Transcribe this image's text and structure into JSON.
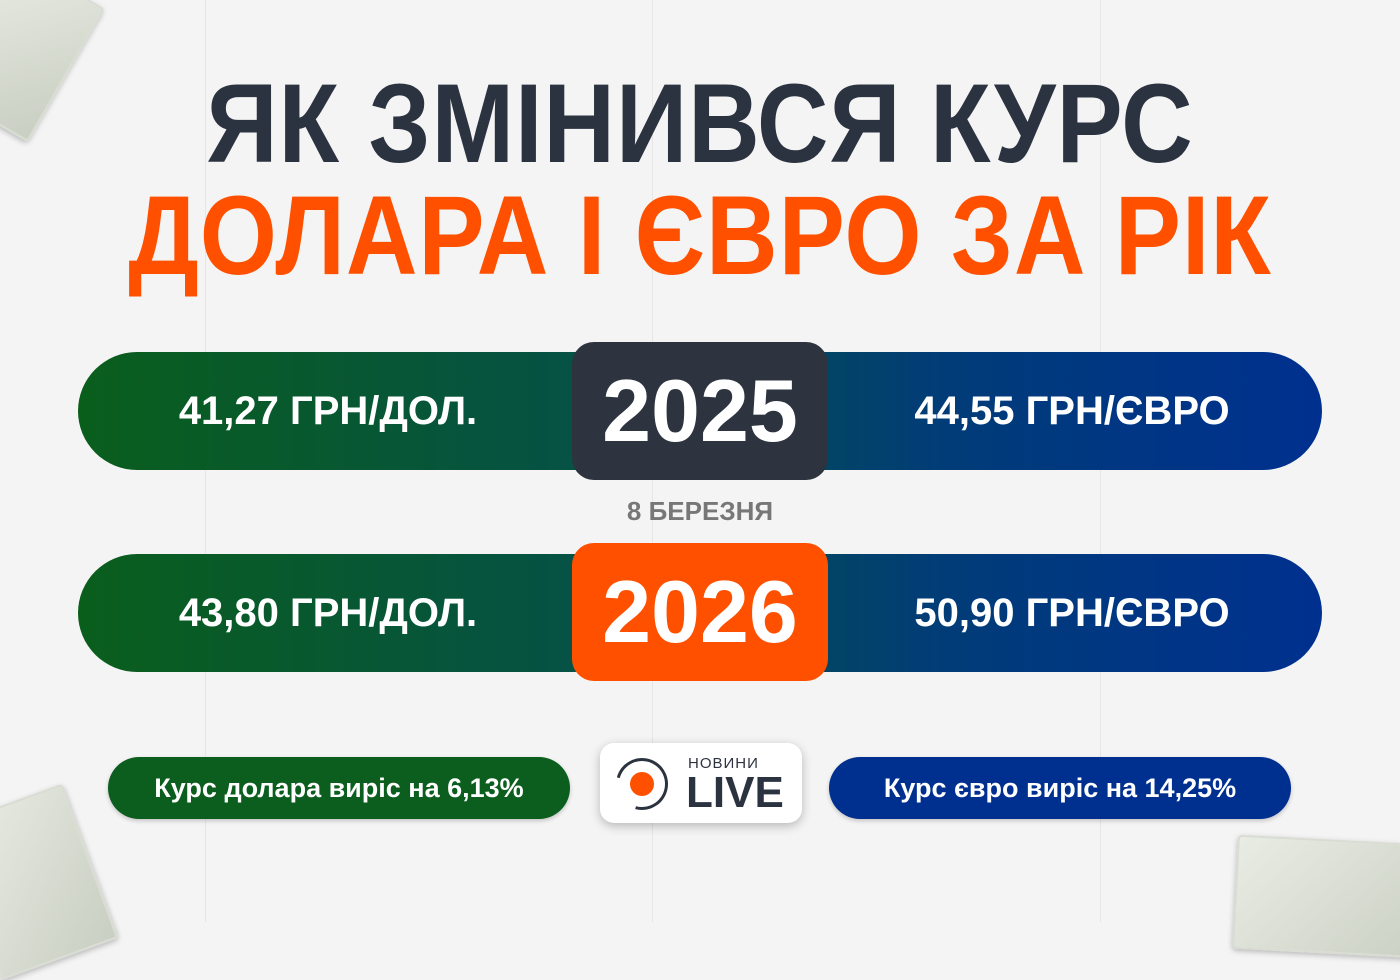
{
  "title": {
    "line1": "ЯК ЗМІНИВСЯ КУРС",
    "line2": "ДОЛАРА І ЄВРО ЗА РІК"
  },
  "rows": [
    {
      "year": "2025",
      "usd": "41,27 ГРН/ДОЛ.",
      "eur": "44,55 ГРН/ЄВРО"
    },
    {
      "year": "2026",
      "usd": "43,80 ГРН/ДОЛ.",
      "eur": "50,90 ГРН/ЄВРО"
    }
  ],
  "date": "8 БЕРЕЗНЯ",
  "summary": {
    "usd": "Курс долара виріс на 6,13%",
    "eur": "Курс євро виріс на 14,25%"
  },
  "logo": {
    "top": "НОВИНИ",
    "main": "LIVE"
  },
  "colors": {
    "dark": "#2c3340",
    "accent": "#ff5000",
    "green": "#0a5e1c",
    "blue": "#00308f"
  }
}
